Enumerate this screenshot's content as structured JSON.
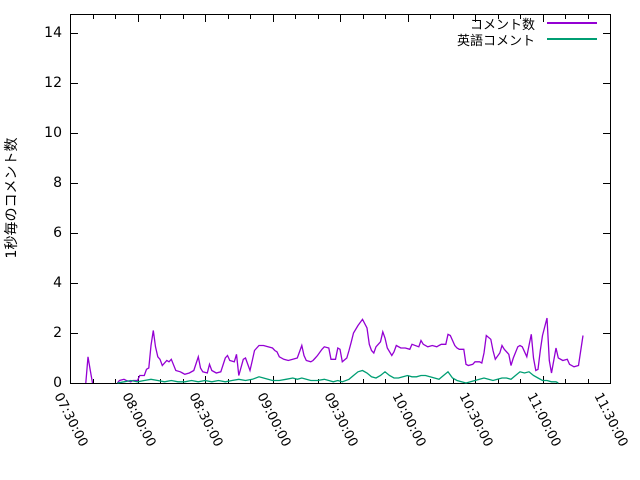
{
  "chart_data": {
    "type": "line",
    "title": "",
    "xlabel": "",
    "ylabel": "1秒毎のコメント数",
    "background_color": "#ffffff",
    "border_color": "#000000",
    "grid": false,
    "legend_position": "top-right-inside",
    "ylim": [
      0,
      14.76
    ],
    "yticks": [
      0,
      2,
      4,
      6,
      8,
      10,
      12,
      14
    ],
    "x_minutes_range": [
      0,
      240
    ],
    "x_major_tick_minutes": 30,
    "x_minor_tick_minutes": 10,
    "xtick_labels": [
      "07:30:00",
      "08:00:00",
      "08:30:00",
      "09:00:00",
      "09:30:00",
      "10:00:00",
      "10:30:00",
      "11:00:00",
      "11:30:00"
    ],
    "series": [
      {
        "name": "コメント数",
        "color": "#9400d3",
        "segments": [
          [
            [
              7,
              0
            ],
            [
              8,
              1.05
            ],
            [
              9,
              0.5
            ],
            [
              10,
              0
            ]
          ],
          [
            [
              21,
              0
            ],
            [
              22,
              0.1
            ],
            [
              24,
              0.15
            ],
            [
              25,
              0.1
            ],
            [
              27,
              0.05
            ],
            [
              28,
              0.1
            ],
            [
              30,
              0.1
            ],
            [
              31,
              0.3
            ],
            [
              33,
              0.3
            ],
            [
              34,
              0.55
            ],
            [
              35,
              0.6
            ],
            [
              36,
              1.5
            ],
            [
              37,
              2.1
            ],
            [
              38,
              1.45
            ],
            [
              39,
              1.05
            ],
            [
              40,
              0.95
            ],
            [
              41,
              0.7
            ],
            [
              43,
              0.9
            ],
            [
              44,
              0.85
            ],
            [
              45,
              0.95
            ],
            [
              47,
              0.5
            ],
            [
              49,
              0.45
            ],
            [
              50,
              0.4
            ],
            [
              51,
              0.35
            ],
            [
              53,
              0.4
            ],
            [
              55,
              0.5
            ],
            [
              57,
              1.05
            ],
            [
              58,
              0.6
            ],
            [
              59,
              0.45
            ],
            [
              61,
              0.4
            ],
            [
              62,
              0.75
            ],
            [
              63,
              0.5
            ],
            [
              65,
              0.4
            ],
            [
              67,
              0.45
            ],
            [
              69,
              1.0
            ],
            [
              70,
              1.1
            ],
            [
              71,
              0.9
            ],
            [
              73,
              0.85
            ],
            [
              74,
              1.15
            ],
            [
              75,
              0.3
            ],
            [
              77,
              0.95
            ],
            [
              78,
              1.0
            ],
            [
              80,
              0.5
            ],
            [
              81,
              0.9
            ],
            [
              82,
              1.3
            ],
            [
              84,
              1.5
            ],
            [
              86,
              1.5
            ],
            [
              88,
              1.45
            ],
            [
              90,
              1.4
            ],
            [
              91,
              1.3
            ],
            [
              92,
              1.25
            ],
            [
              93,
              1.05
            ],
            [
              95,
              0.95
            ],
            [
              97,
              0.9
            ],
            [
              99,
              0.95
            ],
            [
              101,
              1.0
            ],
            [
              103,
              1.5
            ],
            [
              104,
              1.1
            ],
            [
              105,
              0.9
            ],
            [
              107,
              0.85
            ],
            [
              108,
              0.9
            ],
            [
              109,
              1.0
            ],
            [
              110,
              1.1
            ],
            [
              112,
              1.35
            ],
            [
              113,
              1.45
            ],
            [
              115,
              1.4
            ],
            [
              116,
              0.95
            ],
            [
              118,
              0.95
            ],
            [
              119,
              1.4
            ],
            [
              120,
              1.35
            ],
            [
              121,
              0.85
            ],
            [
              123,
              1.0
            ],
            [
              124,
              1.3
            ],
            [
              125,
              1.65
            ],
            [
              126,
              2.0
            ],
            [
              128,
              2.3
            ],
            [
              130,
              2.55
            ],
            [
              132,
              2.2
            ],
            [
              133,
              1.55
            ],
            [
              134,
              1.3
            ],
            [
              135,
              1.2
            ],
            [
              136,
              1.45
            ],
            [
              138,
              1.65
            ],
            [
              139,
              2.05
            ],
            [
              140,
              1.8
            ],
            [
              141,
              1.4
            ],
            [
              143,
              1.1
            ],
            [
              144,
              1.25
            ],
            [
              145,
              1.5
            ],
            [
              147,
              1.4
            ],
            [
              149,
              1.4
            ],
            [
              151,
              1.35
            ],
            [
              152,
              1.55
            ],
            [
              155,
              1.45
            ],
            [
              156,
              1.7
            ],
            [
              157,
              1.55
            ],
            [
              159,
              1.45
            ],
            [
              161,
              1.5
            ],
            [
              163,
              1.45
            ],
            [
              164,
              1.5
            ],
            [
              165,
              1.55
            ],
            [
              167,
              1.55
            ],
            [
              168,
              1.95
            ],
            [
              169,
              1.9
            ],
            [
              171,
              1.5
            ],
            [
              172,
              1.4
            ],
            [
              173,
              1.35
            ],
            [
              175,
              1.35
            ],
            [
              176,
              0.75
            ],
            [
              177,
              0.7
            ],
            [
              179,
              0.75
            ],
            [
              180,
              0.85
            ],
            [
              182,
              0.85
            ],
            [
              183,
              0.8
            ],
            [
              184,
              1.2
            ],
            [
              185,
              1.9
            ],
            [
              187,
              1.75
            ],
            [
              188,
              1.3
            ],
            [
              189,
              0.95
            ],
            [
              191,
              1.2
            ],
            [
              192,
              1.5
            ],
            [
              193,
              1.35
            ],
            [
              195,
              1.15
            ],
            [
              196,
              0.7
            ],
            [
              197,
              1.0
            ],
            [
              199,
              1.45
            ],
            [
              200,
              1.5
            ],
            [
              201,
              1.45
            ],
            [
              203,
              1.05
            ],
            [
              204,
              1.5
            ],
            [
              205,
              1.95
            ],
            [
              206,
              1.0
            ],
            [
              207,
              0.5
            ],
            [
              208,
              0.55
            ],
            [
              209,
              1.3
            ],
            [
              210,
              1.9
            ],
            [
              212,
              2.6
            ],
            [
              213,
              0.9
            ],
            [
              214,
              0.4
            ],
            [
              216,
              1.4
            ],
            [
              217,
              1.0
            ],
            [
              219,
              0.9
            ],
            [
              221,
              0.95
            ],
            [
              222,
              0.75
            ],
            [
              224,
              0.65
            ],
            [
              226,
              0.7
            ],
            [
              228,
              1.9
            ]
          ]
        ]
      },
      {
        "name": "英語コメント",
        "color": "#009e73",
        "segments": [
          [
            [
              21,
              0
            ],
            [
              24,
              0.05
            ],
            [
              27,
              0.1
            ],
            [
              30,
              0.05
            ],
            [
              33,
              0.1
            ],
            [
              36,
              0.15
            ],
            [
              39,
              0.1
            ],
            [
              42,
              0.05
            ],
            [
              45,
              0.1
            ],
            [
              48,
              0.05
            ],
            [
              51,
              0.05
            ],
            [
              54,
              0.1
            ],
            [
              57,
              0.05
            ],
            [
              60,
              0.1
            ],
            [
              63,
              0.05
            ],
            [
              66,
              0.1
            ],
            [
              69,
              0.05
            ],
            [
              72,
              0.1
            ],
            [
              75,
              0.15
            ],
            [
              78,
              0.1
            ],
            [
              81,
              0.15
            ],
            [
              84,
              0.25
            ],
            [
              86,
              0.2
            ],
            [
              88,
              0.15
            ],
            [
              90,
              0.1
            ],
            [
              93,
              0.1
            ],
            [
              96,
              0.15
            ],
            [
              99,
              0.2
            ],
            [
              101,
              0.15
            ],
            [
              103,
              0.2
            ],
            [
              105,
              0.15
            ],
            [
              107,
              0.1
            ],
            [
              110,
              0.1
            ],
            [
              113,
              0.15
            ],
            [
              115,
              0.1
            ],
            [
              117,
              0.05
            ],
            [
              119,
              0.1
            ],
            [
              121,
              0.05
            ],
            [
              124,
              0.15
            ],
            [
              126,
              0.3
            ],
            [
              128,
              0.45
            ],
            [
              130,
              0.5
            ],
            [
              132,
              0.4
            ],
            [
              134,
              0.25
            ],
            [
              136,
              0.2
            ],
            [
              138,
              0.3
            ],
            [
              140,
              0.45
            ],
            [
              142,
              0.3
            ],
            [
              144,
              0.2
            ],
            [
              146,
              0.2
            ],
            [
              148,
              0.25
            ],
            [
              150,
              0.3
            ],
            [
              152,
              0.25
            ],
            [
              154,
              0.25
            ],
            [
              156,
              0.3
            ],
            [
              158,
              0.3
            ],
            [
              160,
              0.25
            ],
            [
              162,
              0.2
            ],
            [
              164,
              0.15
            ],
            [
              166,
              0.3
            ],
            [
              168,
              0.45
            ],
            [
              170,
              0.2
            ],
            [
              172,
              0.1
            ],
            [
              174,
              0.05
            ],
            [
              176,
              0.0
            ],
            [
              178,
              0.05
            ],
            [
              180,
              0.1
            ],
            [
              182,
              0.15
            ],
            [
              184,
              0.2
            ],
            [
              186,
              0.15
            ],
            [
              188,
              0.1
            ],
            [
              190,
              0.15
            ],
            [
              192,
              0.2
            ],
            [
              194,
              0.2
            ],
            [
              196,
              0.15
            ],
            [
              198,
              0.3
            ],
            [
              200,
              0.45
            ],
            [
              202,
              0.4
            ],
            [
              204,
              0.45
            ],
            [
              206,
              0.3
            ],
            [
              208,
              0.2
            ],
            [
              210,
              0.1
            ],
            [
              212,
              0.1
            ],
            [
              214,
              0.05
            ],
            [
              216,
              0.05
            ],
            [
              217,
              0.0
            ]
          ]
        ]
      }
    ]
  }
}
